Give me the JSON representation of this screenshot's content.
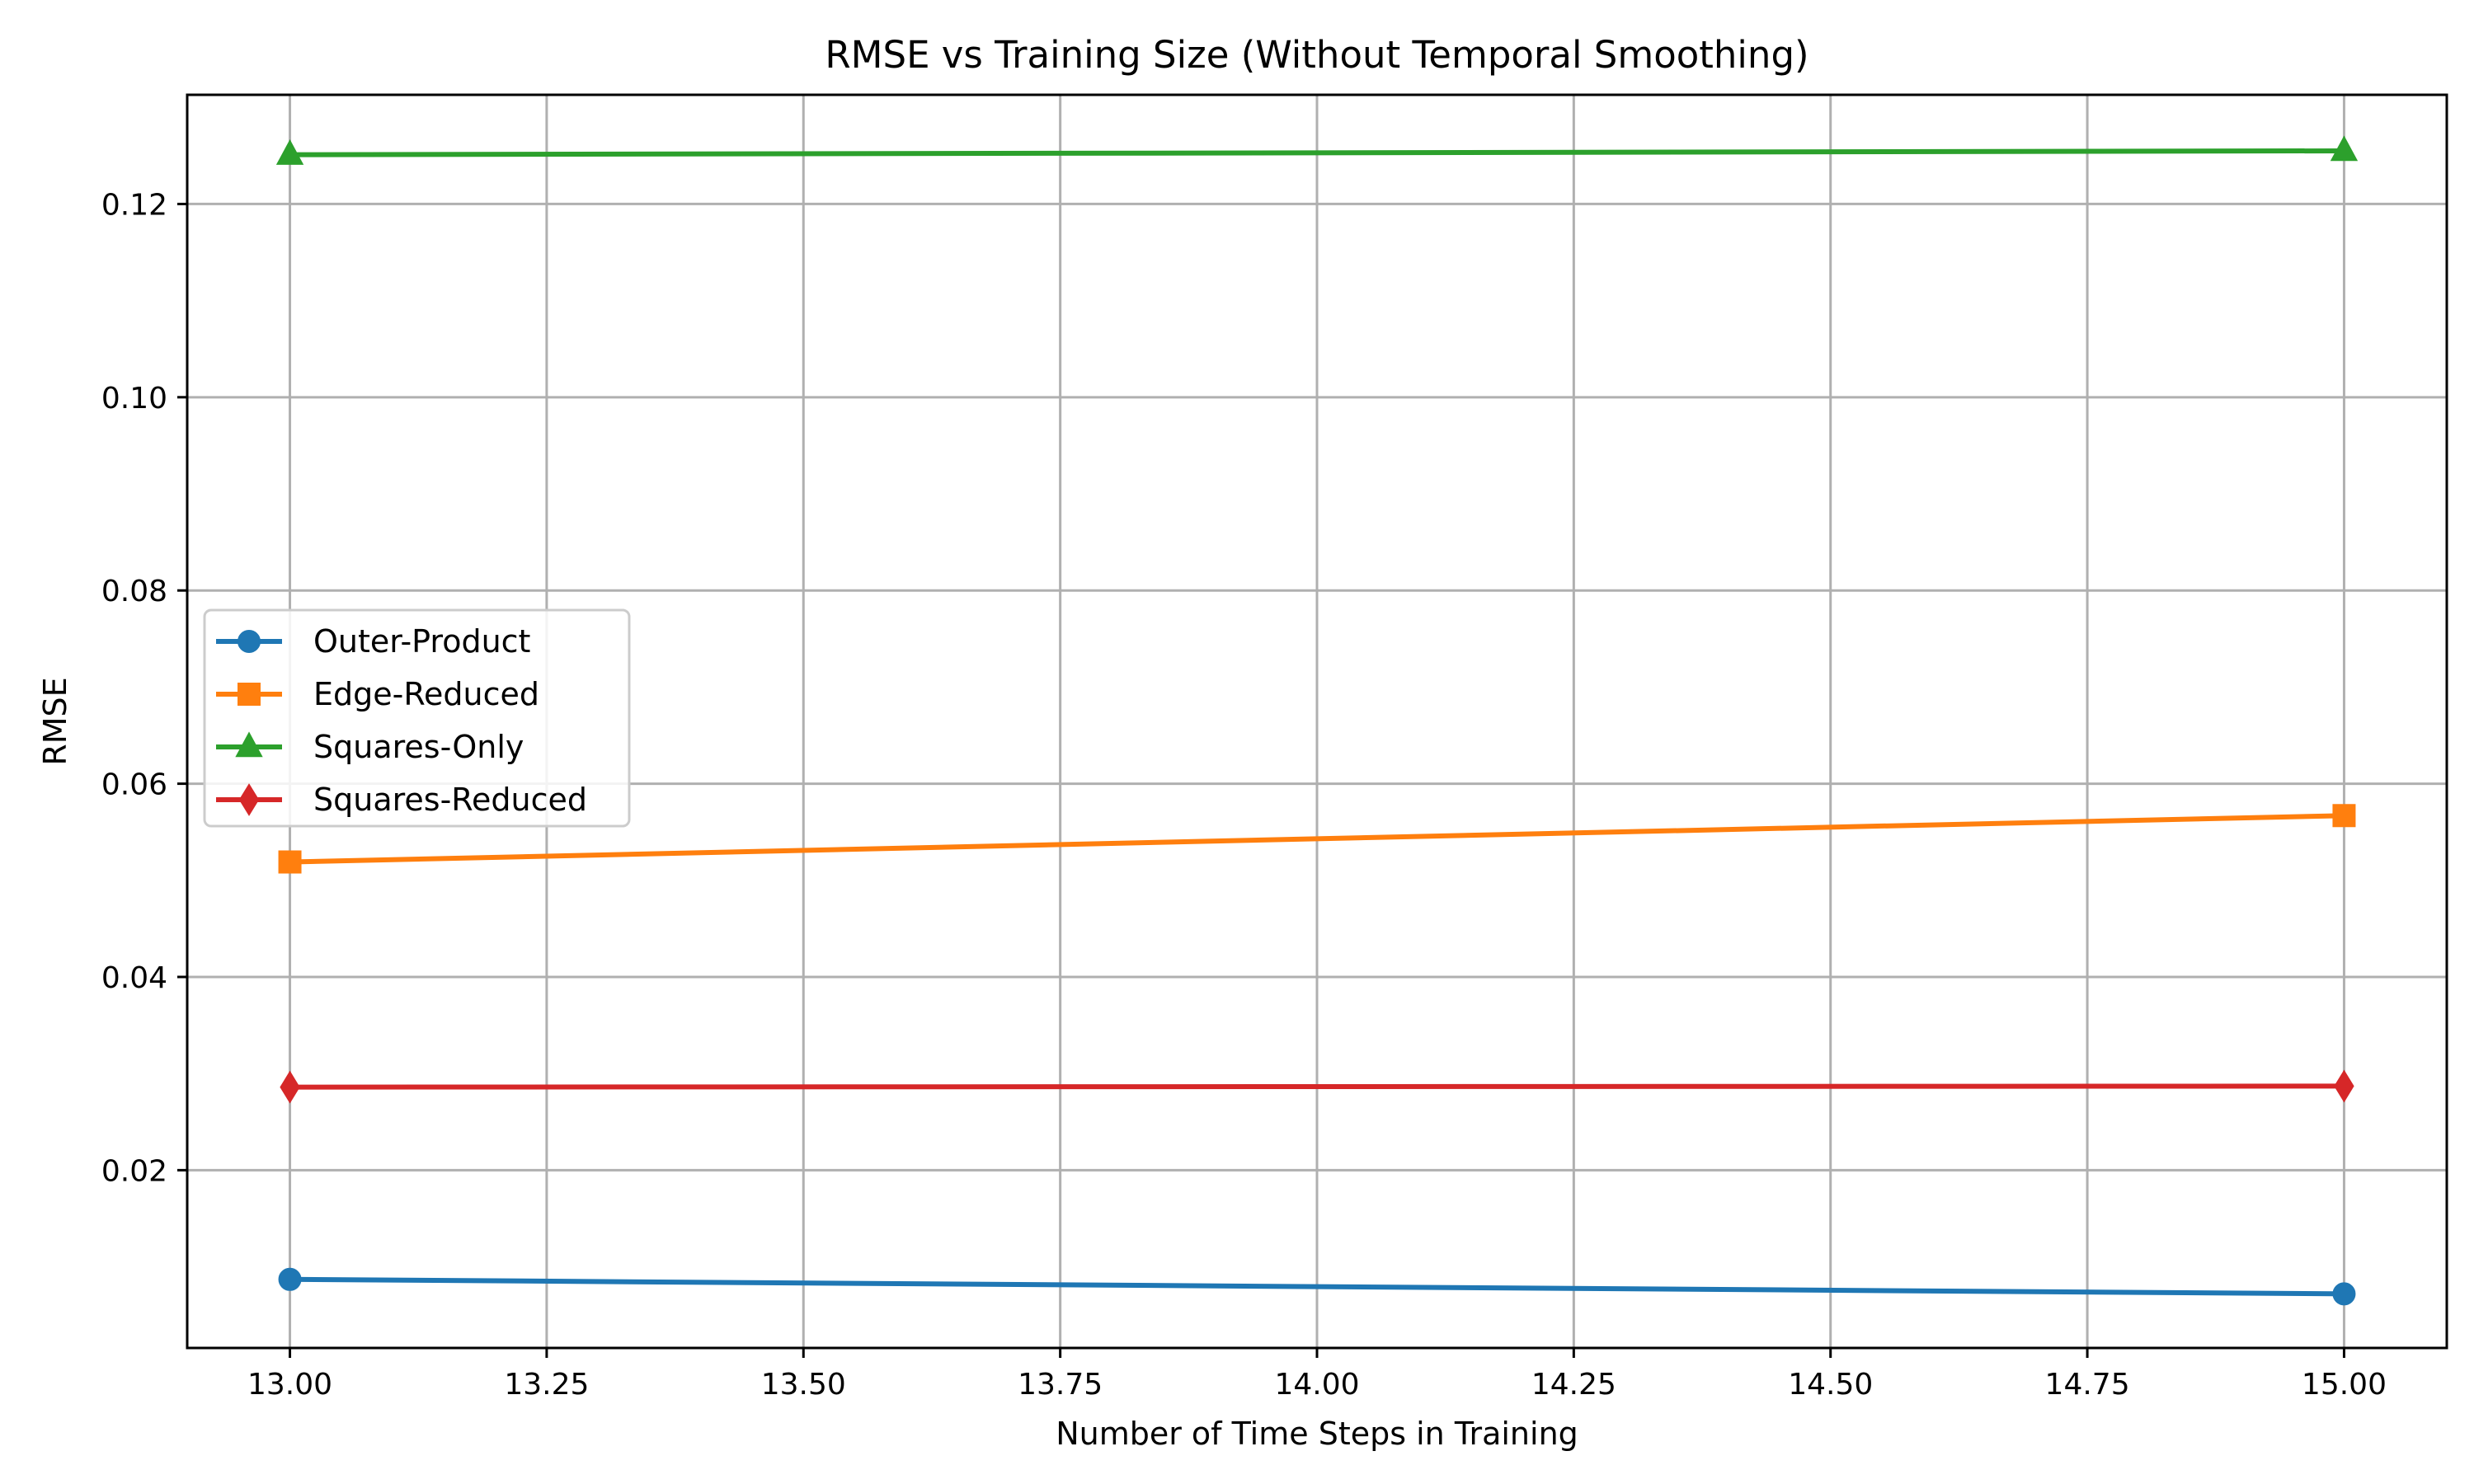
{
  "chart_data": {
    "type": "line",
    "title": "RMSE vs Training Size (Without Temporal Smoothing)",
    "xlabel": "Number of Time Steps in Training",
    "ylabel": "RMSE",
    "xlim": [
      12.9,
      15.1
    ],
    "ylim": [
      0.0016,
      0.1313
    ],
    "xticks": [
      13.0,
      13.25,
      13.5,
      13.75,
      14.0,
      14.25,
      14.5,
      14.75,
      15.0
    ],
    "xtick_labels": [
      "13.00",
      "13.25",
      "13.50",
      "13.75",
      "14.00",
      "14.25",
      "14.50",
      "14.75",
      "15.00"
    ],
    "yticks": [
      0.02,
      0.04,
      0.06,
      0.08,
      0.1,
      0.12
    ],
    "ytick_labels": [
      "0.02",
      "0.04",
      "0.06",
      "0.08",
      "0.10",
      "0.12"
    ],
    "grid": true,
    "legend_position": "center-left",
    "x": [
      13,
      15
    ],
    "series": [
      {
        "name": "Outer-Product",
        "values": [
          0.0087,
          0.0072
        ],
        "color": "#1f77b4",
        "marker": "circle"
      },
      {
        "name": "Edge-Reduced",
        "values": [
          0.0519,
          0.0567
        ],
        "color": "#ff7f0e",
        "marker": "square"
      },
      {
        "name": "Squares-Only",
        "values": [
          0.1251,
          0.1255
        ],
        "color": "#2ca02c",
        "marker": "triangle"
      },
      {
        "name": "Squares-Reduced",
        "values": [
          0.0286,
          0.0287
        ],
        "color": "#d62728",
        "marker": "diamond"
      }
    ]
  }
}
